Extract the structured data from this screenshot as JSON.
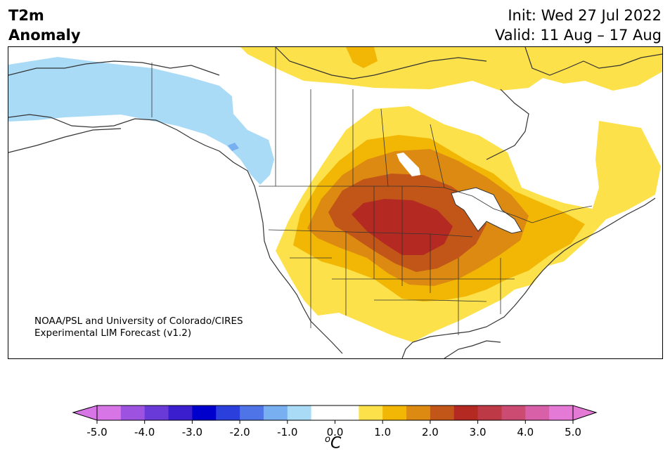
{
  "header": {
    "title_line1": "T2m",
    "title_line2": "Anomaly",
    "init_text": "Init: Wed 27 Jul 2022",
    "valid_text": "Valid: 11 Aug – 17 Aug"
  },
  "credit": {
    "line1": "NOAA/PSL and University of Colorado/CIRES",
    "line2": "Experimental LIM Forecast (v1.2)"
  },
  "colorbar": {
    "unit": "C",
    "unit_superscript": "o",
    "ticks": [
      "-5.0",
      "-4.0",
      "-3.0",
      "-2.0",
      "-1.0",
      "0.0",
      "1.0",
      "2.0",
      "3.0",
      "4.0",
      "5.0"
    ],
    "min_color": "#d774e6",
    "max_color": "#e57ad6",
    "colors": [
      "#d774e6",
      "#9e53e0",
      "#6a3ad8",
      "#3b1fce",
      "#0000cc",
      "#2a3fdb",
      "#4f74e8",
      "#78aff0",
      "#a9dbf7",
      "#ffffff",
      "#ffffff",
      "#fde14a",
      "#f2b705",
      "#dd8a13",
      "#c25518",
      "#b42a22",
      "#bd3945",
      "#cb4b73",
      "#d860a8",
      "#e57ad6"
    ]
  },
  "map": {
    "ocean_color": "#ffffff",
    "coast_color": "#333333",
    "anomaly_colors": {
      "cold_light": "#a9dbf7",
      "cold_mid": "#78aff0",
      "warm_1": "#fde14a",
      "warm_2": "#f2b705",
      "warm_3": "#dd8a13",
      "warm_4": "#c25518",
      "warm_5": "#b42a22"
    }
  }
}
